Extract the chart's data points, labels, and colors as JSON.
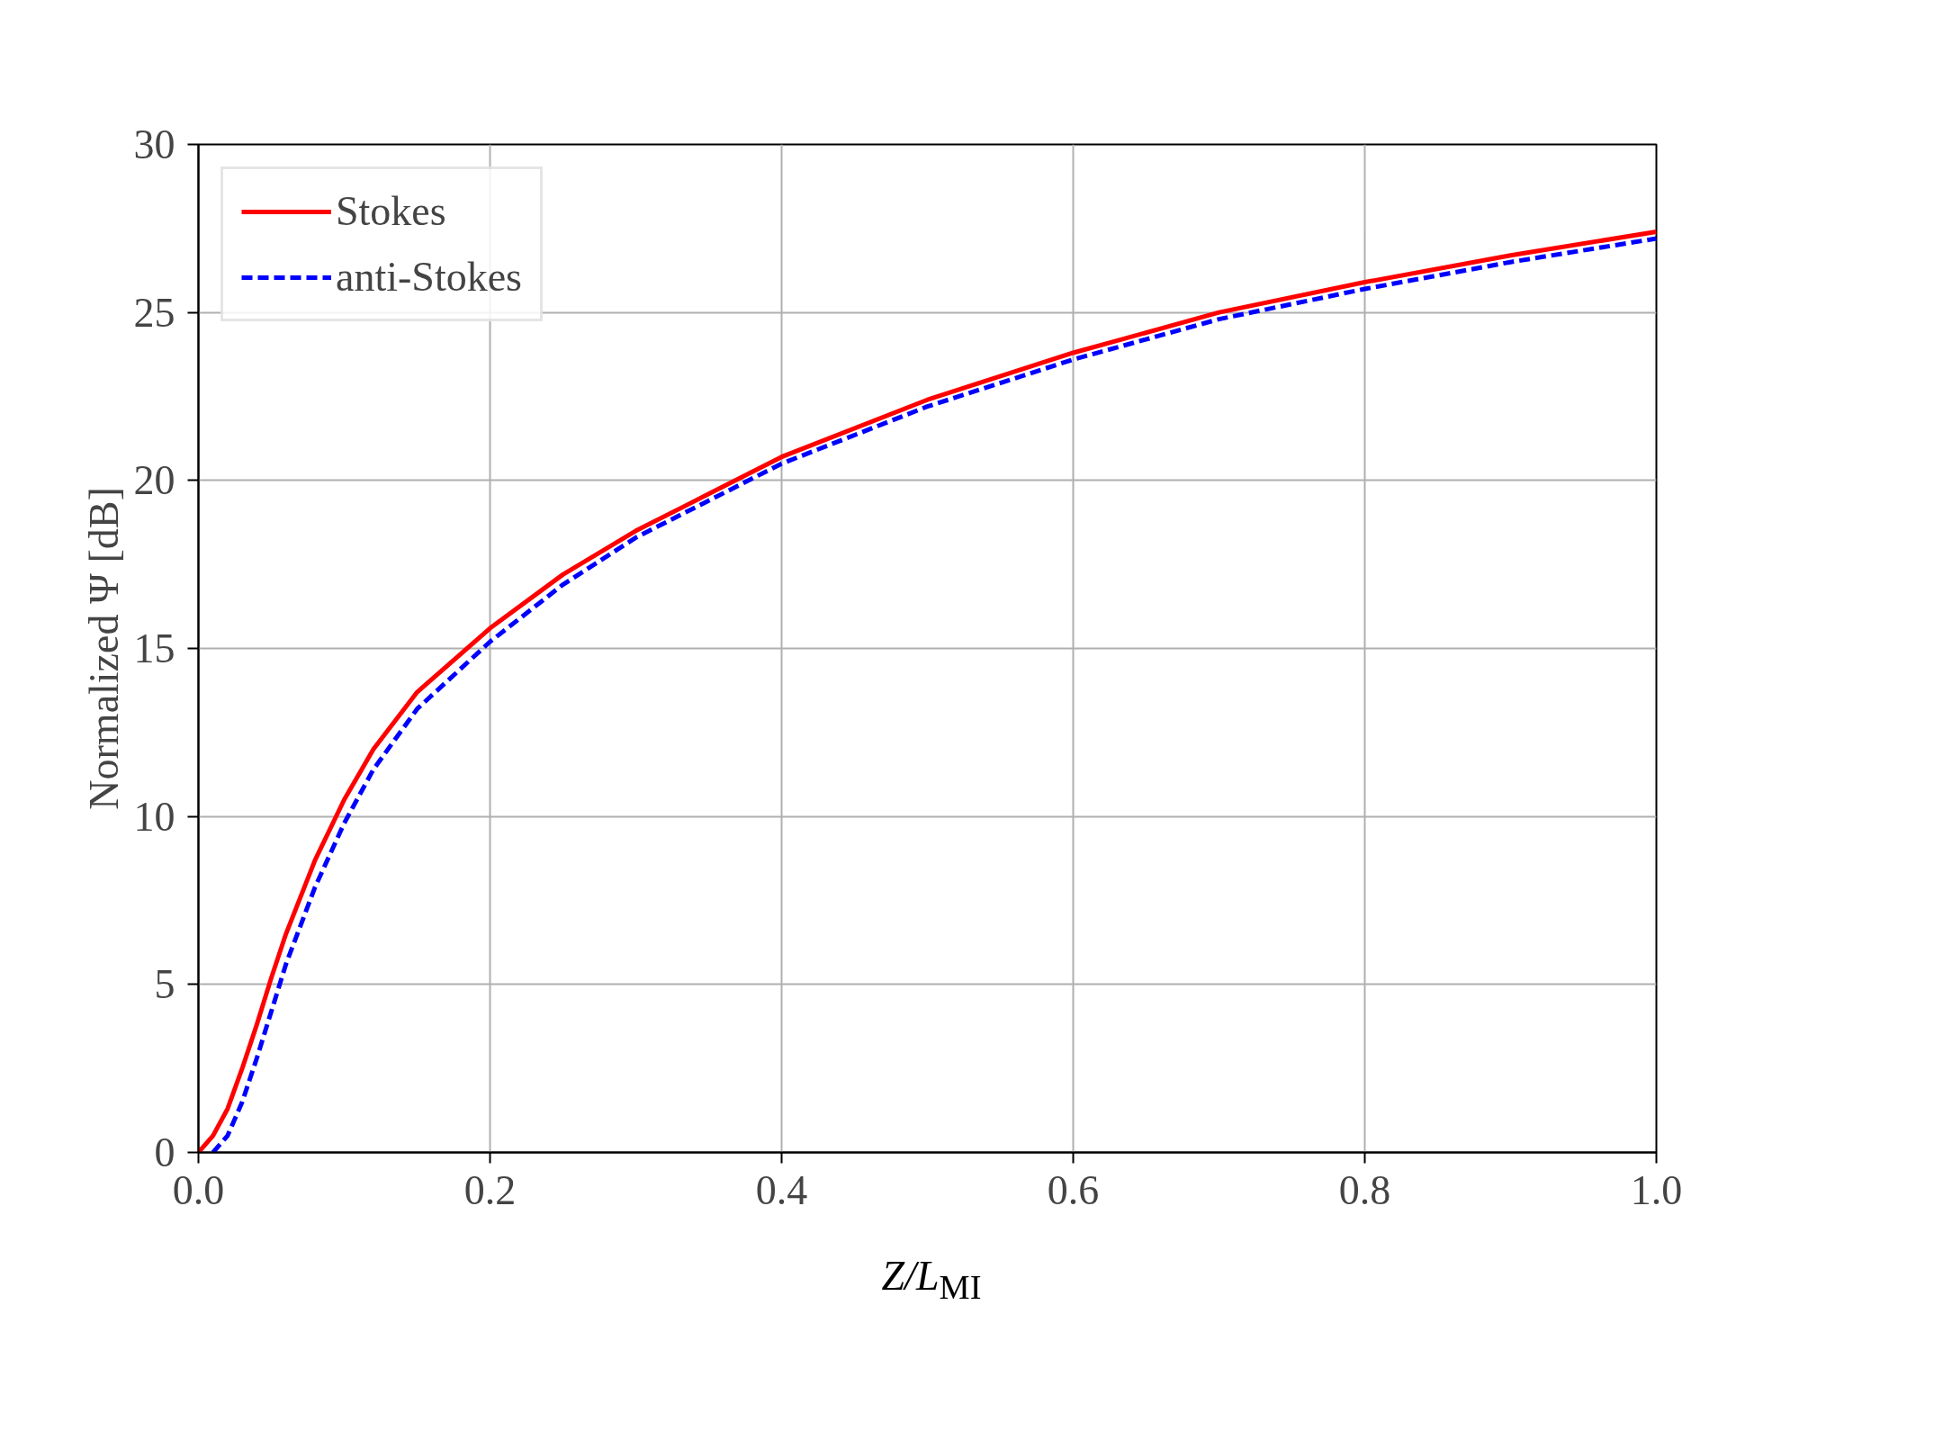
{
  "chart_data": {
    "type": "line",
    "xlabel": "Z/L$_{MI}$",
    "ylabel": "Normalized Ψ [dB]",
    "xlim": [
      0,
      1
    ],
    "ylim": [
      0,
      30
    ],
    "xticks": [
      {
        "value": 0,
        "label": "0.0"
      },
      0.2,
      0.4,
      0.6,
      0.8,
      {
        "value": 1,
        "label": "1.0"
      }
    ],
    "yticks": [
      0,
      5,
      10,
      15,
      20,
      25,
      30
    ],
    "grid": true,
    "legend": "top left",
    "series": [
      {
        "name": "Stokes",
        "color": "#ff0000",
        "line_style": "solid",
        "x": [
          0,
          0.01,
          0.02,
          0.03,
          0.04,
          0.05,
          0.06,
          0.08,
          0.1,
          0.12,
          0.15,
          0.2,
          0.25,
          0.3,
          0.35,
          0.4,
          0.5,
          0.6,
          0.7,
          0.8,
          0.9,
          1.0
        ],
        "values": [
          0,
          0.5,
          1.3,
          2.5,
          3.8,
          5.2,
          6.5,
          8.7,
          10.5,
          12.0,
          13.7,
          15.6,
          17.2,
          18.5,
          19.6,
          20.7,
          22.4,
          23.8,
          25.0,
          25.9,
          26.7,
          27.4
        ]
      },
      {
        "name": "anti-Stokes",
        "color": "#0000ff",
        "line_style": "dashed",
        "x": [
          0.01,
          0.02,
          0.03,
          0.04,
          0.05,
          0.06,
          0.08,
          0.1,
          0.12,
          0.15,
          0.2,
          0.25,
          0.3,
          0.35,
          0.4,
          0.5,
          0.6,
          0.7,
          0.8,
          0.9,
          1.0
        ],
        "values": [
          0,
          0.5,
          1.5,
          2.8,
          4.2,
          5.6,
          7.9,
          9.8,
          11.4,
          13.2,
          15.2,
          16.9,
          18.3,
          19.4,
          20.5,
          22.2,
          23.6,
          24.8,
          25.7,
          26.5,
          27.2
        ]
      }
    ]
  }
}
